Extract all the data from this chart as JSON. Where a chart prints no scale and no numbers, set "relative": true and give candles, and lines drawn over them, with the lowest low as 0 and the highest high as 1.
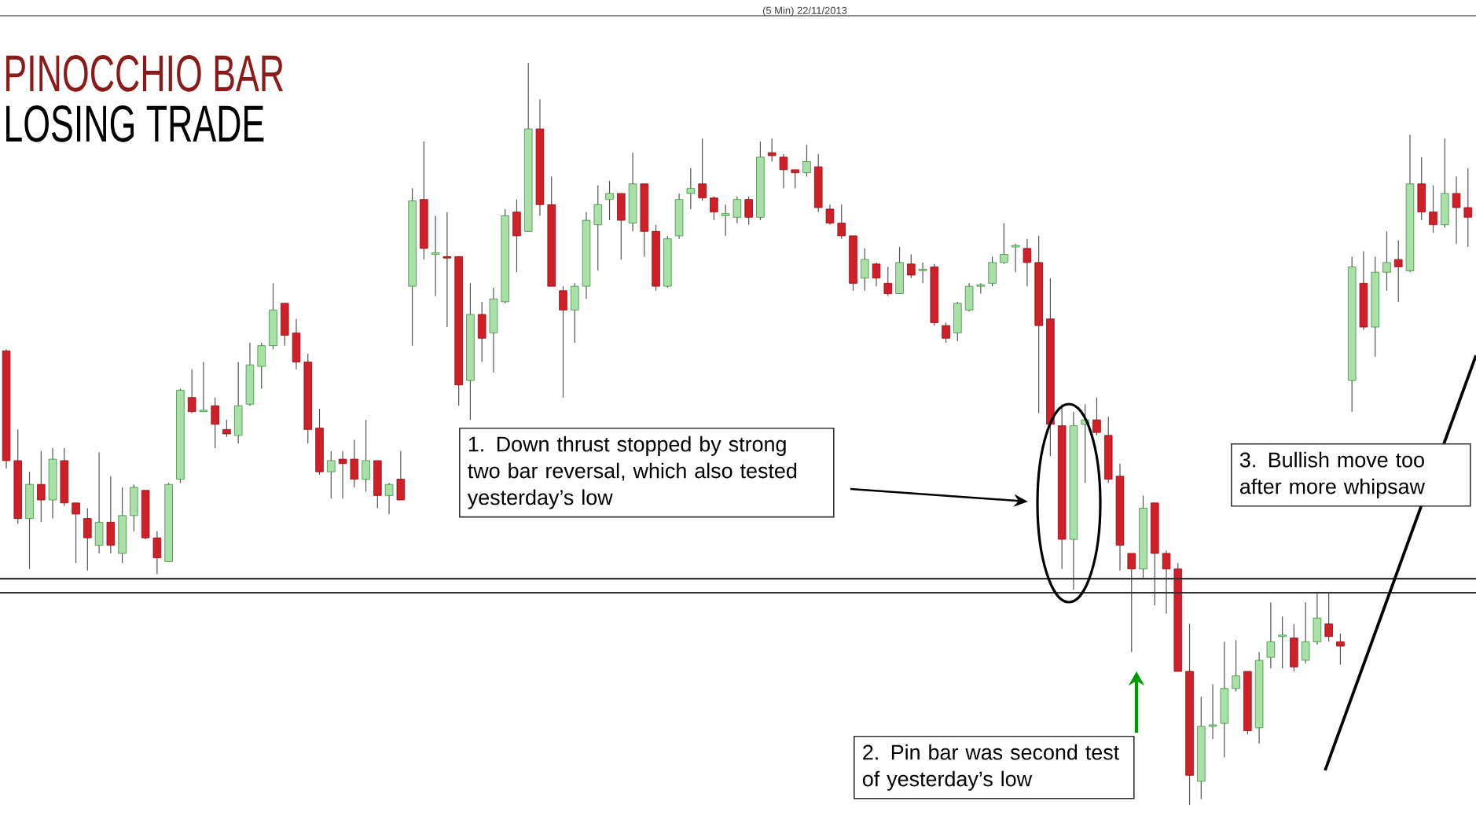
{
  "chart_data": {
    "type": "candlestick",
    "title": "PINOCCHIO BAR",
    "subtitle": "LOSING TRADE",
    "relative": true,
    "categories": [
      null,
      null,
      null,
      null,
      null,
      null,
      null,
      null,
      null,
      null,
      null,
      null,
      null,
      null,
      null,
      null,
      null,
      null,
      null,
      null,
      null,
      null,
      null,
      null,
      null,
      null,
      null,
      null,
      null,
      null,
      null,
      null,
      null,
      null,
      null,
      null,
      null,
      null,
      null,
      null,
      null,
      null,
      null,
      null,
      null,
      null,
      null,
      null,
      null,
      null,
      null,
      null,
      null,
      null,
      null,
      null,
      null,
      null,
      null,
      null,
      null,
      null,
      null,
      null,
      null,
      null,
      null,
      null,
      null,
      null,
      null,
      null,
      null,
      null,
      null,
      null,
      null,
      null,
      null,
      null,
      null,
      null,
      null,
      null,
      null,
      null,
      null,
      null,
      null,
      null,
      null,
      null,
      null,
      null,
      null,
      null,
      null,
      null,
      null,
      null,
      null,
      null,
      null,
      null,
      null,
      null,
      null,
      null,
      null,
      null,
      null,
      null,
      null,
      null,
      null,
      null,
      null,
      null,
      null,
      null,
      null,
      null,
      null,
      null,
      null,
      null,
      null
    ],
    "ohlc": [
      [
        0.612,
        0.614,
        0.453,
        0.464
      ],
      [
        0.464,
        0.506,
        0.379,
        0.386
      ],
      [
        0.386,
        0.449,
        0.318,
        0.432
      ],
      [
        0.432,
        0.477,
        0.381,
        0.411
      ],
      [
        0.411,
        0.481,
        0.386,
        0.466
      ],
      [
        0.464,
        0.481,
        0.403,
        0.407
      ],
      [
        0.407,
        0.407,
        0.326,
        0.392
      ],
      [
        0.386,
        0.4,
        0.316,
        0.36
      ],
      [
        0.35,
        0.475,
        0.339,
        0.381
      ],
      [
        0.381,
        0.443,
        0.339,
        0.35
      ],
      [
        0.339,
        0.428,
        0.326,
        0.39
      ],
      [
        0.39,
        0.432,
        0.369,
        0.428
      ],
      [
        0.424,
        0.424,
        0.358,
        0.36
      ],
      [
        0.36,
        0.369,
        0.311,
        0.333
      ],
      [
        0.328,
        0.434,
        0.328,
        0.432
      ],
      [
        0.439,
        0.561,
        0.434,
        0.559
      ],
      [
        0.549,
        0.587,
        0.528,
        0.53
      ],
      [
        0.53,
        0.597,
        0.53,
        0.532
      ],
      [
        0.538,
        0.549,
        0.481,
        0.513
      ],
      [
        0.506,
        0.519,
        0.496,
        0.5
      ],
      [
        0.498,
        0.597,
        0.487,
        0.538
      ],
      [
        0.54,
        0.623,
        0.538,
        0.593
      ],
      [
        0.591,
        0.623,
        0.561,
        0.619
      ],
      [
        0.619,
        0.703,
        0.614,
        0.667
      ],
      [
        0.676,
        0.676,
        0.619,
        0.633
      ],
      [
        0.636,
        0.655,
        0.587,
        0.597
      ],
      [
        0.597,
        0.608,
        0.487,
        0.506
      ],
      [
        0.508,
        0.534,
        0.445,
        0.449
      ],
      [
        0.449,
        0.477,
        0.413,
        0.464
      ],
      [
        0.466,
        0.477,
        0.413,
        0.46
      ],
      [
        0.466,
        0.492,
        0.428,
        0.439
      ],
      [
        0.439,
        0.519,
        0.422,
        0.464
      ],
      [
        0.464,
        0.464,
        0.4,
        0.417
      ],
      [
        0.417,
        0.434,
        0.392,
        0.432
      ],
      [
        0.439,
        0.477,
        0.411,
        0.411
      ],
      [
        0.699,
        0.831,
        0.619,
        0.814
      ],
      [
        0.816,
        0.894,
        0.735,
        0.75
      ],
      [
        0.742,
        0.794,
        0.686,
        0.744
      ],
      [
        0.739,
        0.799,
        0.644,
        0.737
      ],
      [
        0.739,
        0.739,
        0.538,
        0.566
      ],
      [
        0.572,
        0.703,
        0.519,
        0.661
      ],
      [
        0.661,
        0.678,
        0.597,
        0.629
      ],
      [
        0.636,
        0.697,
        0.583,
        0.682
      ],
      [
        0.678,
        0.803,
        0.676,
        0.794
      ],
      [
        0.799,
        0.816,
        0.718,
        0.767
      ],
      [
        0.773,
        1,
        0.773,
        0.911
      ],
      [
        0.911,
        0.951,
        0.794,
        0.809
      ],
      [
        0.809,
        0.847,
        0.699,
        0.699
      ],
      [
        0.693,
        0.699,
        0.549,
        0.667
      ],
      [
        0.667,
        0.703,
        0.623,
        0.699
      ],
      [
        0.699,
        0.799,
        0.682,
        0.788
      ],
      [
        0.782,
        0.835,
        0.72,
        0.809
      ],
      [
        0.816,
        0.841,
        0.788,
        0.824
      ],
      [
        0.824,
        0.824,
        0.735,
        0.788
      ],
      [
        0.784,
        0.879,
        0.773,
        0.837
      ],
      [
        0.837,
        0.837,
        0.739,
        0.773
      ],
      [
        0.773,
        0.782,
        0.693,
        0.699
      ],
      [
        0.699,
        0.767,
        0.697,
        0.763
      ],
      [
        0.767,
        0.824,
        0.763,
        0.816
      ],
      [
        0.824,
        0.858,
        0.803,
        0.831
      ],
      [
        0.837,
        0.898,
        0.814,
        0.818
      ],
      [
        0.818,
        0.82,
        0.788,
        0.799
      ],
      [
        0.794,
        0.809,
        0.767,
        0.797
      ],
      [
        0.792,
        0.82,
        0.784,
        0.816
      ],
      [
        0.816,
        0.82,
        0.782,
        0.792
      ],
      [
        0.792,
        0.894,
        0.788,
        0.873
      ],
      [
        0.879,
        0.898,
        0.867,
        0.875
      ],
      [
        0.873,
        0.877,
        0.831,
        0.856
      ],
      [
        0.856,
        0.856,
        0.831,
        0.852
      ],
      [
        0.852,
        0.89,
        0.847,
        0.867
      ],
      [
        0.86,
        0.877,
        0.799,
        0.805
      ],
      [
        0.803,
        0.809,
        0.782,
        0.784
      ],
      [
        0.784,
        0.809,
        0.763,
        0.767
      ],
      [
        0.767,
        0.767,
        0.693,
        0.703
      ],
      [
        0.71,
        0.75,
        0.693,
        0.735
      ],
      [
        0.729,
        0.731,
        0.699,
        0.71
      ],
      [
        0.703,
        0.725,
        0.686,
        0.689
      ],
      [
        0.689,
        0.752,
        0.689,
        0.731
      ],
      [
        0.729,
        0.742,
        0.71,
        0.714
      ],
      [
        0.72,
        0.731,
        0.703,
        0.722
      ],
      [
        0.725,
        0.729,
        0.646,
        0.65
      ],
      [
        0.646,
        0.65,
        0.623,
        0.629
      ],
      [
        0.636,
        0.678,
        0.625,
        0.676
      ],
      [
        0.667,
        0.703,
        0.665,
        0.699
      ],
      [
        0.699,
        0.703,
        0.689,
        0.701
      ],
      [
        0.703,
        0.739,
        0.699,
        0.731
      ],
      [
        0.731,
        0.784,
        0.729,
        0.742
      ],
      [
        0.752,
        0.756,
        0.718,
        0.754
      ],
      [
        0.75,
        0.763,
        0.699,
        0.731
      ],
      [
        0.731,
        0.767,
        0.528,
        0.646
      ],
      [
        0.655,
        0.71,
        0.47,
        0.513
      ],
      [
        0.511,
        0.54,
        0.318,
        0.358
      ],
      [
        0.358,
        0.53,
        0.29,
        0.511
      ],
      [
        0.513,
        0.54,
        0.434,
        0.519
      ],
      [
        0.519,
        0.549,
        0.498,
        0.502
      ],
      [
        0.498,
        0.523,
        0.434,
        0.439
      ],
      [
        0.443,
        0.46,
        0.316,
        0.35
      ],
      [
        0.339,
        0.339,
        0.206,
        0.318
      ],
      [
        0.318,
        0.417,
        0.305,
        0.4
      ],
      [
        0.407,
        0.407,
        0.269,
        0.339
      ],
      [
        0.339,
        0.343,
        0.258,
        0.318
      ],
      [
        0.318,
        0.326,
        0.18,
        0.18
      ],
      [
        0.18,
        0.244,
        0,
        0.04
      ],
      [
        0.032,
        0.146,
        0.008,
        0.106
      ],
      [
        0.106,
        0.163,
        0.089,
        0.108
      ],
      [
        0.11,
        0.22,
        0.064,
        0.157
      ],
      [
        0.157,
        0.222,
        0.153,
        0.174
      ],
      [
        0.18,
        0.18,
        0.095,
        0.1
      ],
      [
        0.104,
        0.206,
        0.083,
        0.195
      ],
      [
        0.199,
        0.273,
        0.184,
        0.22
      ],
      [
        0.227,
        0.254,
        0.184,
        0.229
      ],
      [
        0.225,
        0.244,
        0.18,
        0.186
      ],
      [
        0.195,
        0.273,
        0.191,
        0.22
      ],
      [
        0.22,
        0.286,
        0.216,
        0.252
      ],
      [
        0.244,
        0.286,
        0.22,
        0.227
      ],
      [
        0.22,
        0.231,
        0.189,
        0.214
      ],
      [
        0.572,
        0.739,
        0.53,
        0.725
      ],
      [
        0.703,
        0.746,
        0.64,
        0.644
      ],
      [
        0.644,
        0.739,
        0.604,
        0.718
      ],
      [
        0.718,
        0.773,
        0.693,
        0.731
      ],
      [
        0.735,
        0.761,
        0.678,
        0.725
      ],
      [
        0.72,
        0.903,
        0.718,
        0.837
      ],
      [
        0.837,
        0.873,
        0.788,
        0.799
      ],
      [
        0.799,
        0.835,
        0.771,
        0.782
      ],
      [
        0.782,
        0.898,
        0.778,
        0.824
      ],
      [
        0.824,
        0.847,
        0.756,
        0.805
      ],
      [
        0.805,
        0.858,
        0.752,
        0.792
      ]
    ],
    "ref_lines": [
      {
        "axis": "y",
        "value": 0.305,
        "color": "#333333"
      },
      {
        "axis": "y",
        "value": 0.286,
        "color": "#333333"
      }
    ],
    "annotations": [
      "(5 Min)  22/11/2013",
      "1. Down thrust stopped by strong two bar reversal, which also tested yesterday’s low",
      "2. Pin bar was second test of yesterday’s low",
      "3. Bullish move too after more whipsaw"
    ]
  }
}
